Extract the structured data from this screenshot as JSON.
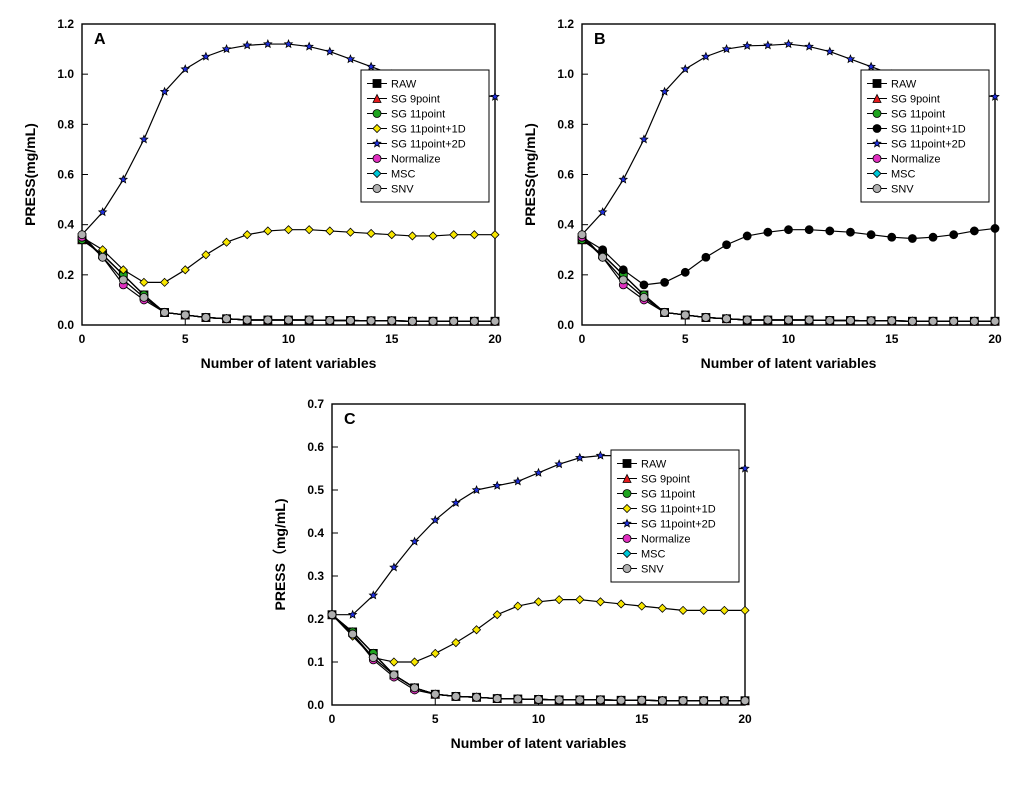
{
  "figure": {
    "background_color": "#ffffff",
    "panel_label_fontsize": 16,
    "panel_label_weight": "bold",
    "axis_label_fontsize": 14,
    "axis_label_weight": "bold",
    "tick_fontsize": 12,
    "legend_fontsize": 11,
    "line_width": 1.2,
    "marker_size": 4,
    "axis_color": "#000000",
    "text_color": "#000000"
  },
  "series_defs": [
    {
      "id": "RAW",
      "label": "RAW",
      "color": "#000000",
      "marker": "square"
    },
    {
      "id": "SG9",
      "label": "SG 9point",
      "color": "#e41a1c",
      "marker": "triangle"
    },
    {
      "id": "SG11",
      "label": "SG 11point",
      "color": "#1fa51f",
      "marker": "circle"
    },
    {
      "id": "SG11_1D",
      "label": "SG 11point+1D",
      "color": "#f7e600",
      "marker": "diamond"
    },
    {
      "id": "SG11_2D",
      "label": "SG 11point+2D",
      "color": "#2030e0",
      "marker": "star"
    },
    {
      "id": "Normalize",
      "label": "Normalize",
      "color": "#e030c0",
      "marker": "circle"
    },
    {
      "id": "MSC",
      "label": "MSC",
      "color": "#00c8d8",
      "marker": "diamond"
    },
    {
      "id": "SNV",
      "label": "SNV",
      "color": "#b0b0b0",
      "marker": "circle"
    }
  ],
  "panels": {
    "A": {
      "title": "A",
      "xlabel": "Number of latent variables",
      "ylabel": "PRESS(mg/mL)",
      "xlim": [
        0,
        20
      ],
      "xtick_step": 5,
      "ylim": [
        0,
        1.2
      ],
      "ytick_step": 0.2,
      "x": [
        0,
        1,
        2,
        3,
        4,
        5,
        6,
        7,
        8,
        9,
        10,
        11,
        12,
        13,
        14,
        15,
        16,
        17,
        18,
        19,
        20
      ],
      "series_overrides": {
        "SG11_1D": {
          "color": "#f7e600"
        }
      },
      "data": {
        "RAW": [
          0.34,
          0.28,
          0.2,
          0.12,
          0.05,
          0.04,
          0.03,
          0.025,
          0.02,
          0.02,
          0.02,
          0.02,
          0.018,
          0.018,
          0.017,
          0.017,
          0.015,
          0.015,
          0.015,
          0.015,
          0.015
        ],
        "SG9": [
          0.34,
          0.28,
          0.2,
          0.12,
          0.05,
          0.04,
          0.03,
          0.025,
          0.02,
          0.02,
          0.02,
          0.02,
          0.018,
          0.018,
          0.017,
          0.017,
          0.015,
          0.015,
          0.015,
          0.015,
          0.015
        ],
        "SG11": [
          0.34,
          0.28,
          0.2,
          0.12,
          0.05,
          0.04,
          0.03,
          0.025,
          0.02,
          0.02,
          0.02,
          0.02,
          0.018,
          0.018,
          0.017,
          0.017,
          0.015,
          0.015,
          0.015,
          0.015,
          0.015
        ],
        "SG11_1D": [
          0.35,
          0.3,
          0.22,
          0.17,
          0.17,
          0.22,
          0.28,
          0.33,
          0.36,
          0.375,
          0.38,
          0.38,
          0.375,
          0.37,
          0.365,
          0.36,
          0.355,
          0.355,
          0.36,
          0.36,
          0.36
        ],
        "SG11_2D": [
          0.36,
          0.45,
          0.58,
          0.74,
          0.93,
          1.02,
          1.07,
          1.1,
          1.115,
          1.12,
          1.12,
          1.11,
          1.09,
          1.06,
          1.03,
          1.0,
          0.97,
          0.95,
          0.93,
          0.92,
          0.91
        ],
        "Normalize": [
          0.35,
          0.27,
          0.16,
          0.1,
          0.05,
          0.04,
          0.03,
          0.025,
          0.02,
          0.02,
          0.02,
          0.02,
          0.018,
          0.018,
          0.017,
          0.017,
          0.015,
          0.015,
          0.015,
          0.015,
          0.015
        ],
        "MSC": [
          0.36,
          0.27,
          0.18,
          0.11,
          0.05,
          0.04,
          0.03,
          0.025,
          0.02,
          0.02,
          0.02,
          0.02,
          0.018,
          0.018,
          0.017,
          0.017,
          0.015,
          0.015,
          0.015,
          0.015,
          0.015
        ],
        "SNV": [
          0.36,
          0.27,
          0.18,
          0.11,
          0.05,
          0.04,
          0.03,
          0.025,
          0.02,
          0.02,
          0.02,
          0.02,
          0.018,
          0.018,
          0.017,
          0.017,
          0.015,
          0.015,
          0.015,
          0.015,
          0.015
        ]
      }
    },
    "B": {
      "title": "B",
      "xlabel": "Number of latent variables",
      "ylabel": "PRESS(mg/mL)",
      "xlim": [
        0,
        20
      ],
      "xtick_step": 5,
      "ylim": [
        0,
        1.2
      ],
      "ytick_step": 0.2,
      "x": [
        0,
        1,
        2,
        3,
        4,
        5,
        6,
        7,
        8,
        9,
        10,
        11,
        12,
        13,
        14,
        15,
        16,
        17,
        18,
        19,
        20
      ],
      "series_overrides": {
        "SG11_1D": {
          "color": "#000000",
          "marker": "circle"
        }
      },
      "data": {
        "RAW": [
          0.34,
          0.28,
          0.2,
          0.12,
          0.05,
          0.04,
          0.03,
          0.025,
          0.02,
          0.02,
          0.02,
          0.02,
          0.018,
          0.018,
          0.017,
          0.017,
          0.015,
          0.015,
          0.015,
          0.015,
          0.015
        ],
        "SG9": [
          0.34,
          0.28,
          0.2,
          0.12,
          0.05,
          0.04,
          0.03,
          0.025,
          0.02,
          0.02,
          0.02,
          0.02,
          0.018,
          0.018,
          0.017,
          0.017,
          0.015,
          0.015,
          0.015,
          0.015,
          0.015
        ],
        "SG11": [
          0.34,
          0.28,
          0.2,
          0.12,
          0.05,
          0.04,
          0.03,
          0.025,
          0.02,
          0.02,
          0.02,
          0.02,
          0.018,
          0.018,
          0.017,
          0.017,
          0.015,
          0.015,
          0.015,
          0.015,
          0.015
        ],
        "SG11_1D": [
          0.35,
          0.3,
          0.22,
          0.16,
          0.17,
          0.21,
          0.27,
          0.32,
          0.355,
          0.37,
          0.38,
          0.38,
          0.375,
          0.37,
          0.36,
          0.35,
          0.345,
          0.35,
          0.36,
          0.375,
          0.385
        ],
        "SG11_2D": [
          0.36,
          0.45,
          0.58,
          0.74,
          0.93,
          1.02,
          1.07,
          1.1,
          1.113,
          1.115,
          1.12,
          1.11,
          1.09,
          1.06,
          1.03,
          1.0,
          0.97,
          0.95,
          0.93,
          0.92,
          0.91
        ],
        "Normalize": [
          0.35,
          0.27,
          0.16,
          0.1,
          0.05,
          0.04,
          0.03,
          0.025,
          0.02,
          0.02,
          0.02,
          0.02,
          0.018,
          0.018,
          0.017,
          0.017,
          0.015,
          0.015,
          0.015,
          0.015,
          0.015
        ],
        "MSC": [
          0.36,
          0.27,
          0.18,
          0.11,
          0.05,
          0.04,
          0.03,
          0.025,
          0.02,
          0.02,
          0.02,
          0.02,
          0.018,
          0.018,
          0.017,
          0.017,
          0.015,
          0.015,
          0.015,
          0.015,
          0.015
        ],
        "SNV": [
          0.36,
          0.27,
          0.18,
          0.11,
          0.05,
          0.04,
          0.03,
          0.025,
          0.02,
          0.02,
          0.02,
          0.02,
          0.018,
          0.018,
          0.017,
          0.017,
          0.015,
          0.015,
          0.015,
          0.015,
          0.015
        ]
      }
    },
    "C": {
      "title": "C",
      "xlabel": "Number of latent variables",
      "ylabel": "PRESS（mg/mL)",
      "xlim": [
        0,
        20
      ],
      "xtick_step": 5,
      "ylim": [
        0,
        0.7
      ],
      "ytick_step": 0.1,
      "x": [
        0,
        1,
        2,
        3,
        4,
        5,
        6,
        7,
        8,
        9,
        10,
        11,
        12,
        13,
        14,
        15,
        16,
        17,
        18,
        19,
        20
      ],
      "series_overrides": {
        "SG11_1D": {
          "color": "#f7e600"
        },
        "SG11": {
          "label": "SG  11point"
        }
      },
      "data": {
        "RAW": [
          0.21,
          0.17,
          0.12,
          0.07,
          0.04,
          0.025,
          0.02,
          0.018,
          0.015,
          0.014,
          0.013,
          0.012,
          0.012,
          0.012,
          0.011,
          0.011,
          0.01,
          0.01,
          0.01,
          0.01,
          0.01
        ],
        "SG9": [
          0.21,
          0.17,
          0.12,
          0.07,
          0.04,
          0.025,
          0.02,
          0.018,
          0.015,
          0.014,
          0.013,
          0.012,
          0.012,
          0.012,
          0.011,
          0.011,
          0.01,
          0.01,
          0.01,
          0.01,
          0.01
        ],
        "SG11": [
          0.21,
          0.17,
          0.12,
          0.07,
          0.04,
          0.025,
          0.02,
          0.018,
          0.015,
          0.014,
          0.013,
          0.012,
          0.012,
          0.012,
          0.011,
          0.011,
          0.01,
          0.01,
          0.01,
          0.01,
          0.01
        ],
        "SG11_1D": [
          0.21,
          0.16,
          0.11,
          0.1,
          0.1,
          0.12,
          0.145,
          0.175,
          0.21,
          0.23,
          0.24,
          0.245,
          0.245,
          0.24,
          0.235,
          0.23,
          0.225,
          0.22,
          0.22,
          0.22,
          0.22
        ],
        "SG11_2D": [
          0.21,
          0.21,
          0.255,
          0.32,
          0.38,
          0.43,
          0.47,
          0.5,
          0.51,
          0.52,
          0.54,
          0.56,
          0.575,
          0.58,
          0.58,
          0.575,
          0.57,
          0.56,
          0.555,
          0.55,
          0.55
        ],
        "Normalize": [
          0.21,
          0.165,
          0.105,
          0.065,
          0.035,
          0.025,
          0.02,
          0.018,
          0.015,
          0.014,
          0.013,
          0.012,
          0.012,
          0.012,
          0.011,
          0.011,
          0.01,
          0.01,
          0.01,
          0.01,
          0.01
        ],
        "MSC": [
          0.21,
          0.165,
          0.11,
          0.07,
          0.04,
          0.025,
          0.02,
          0.018,
          0.015,
          0.014,
          0.013,
          0.012,
          0.012,
          0.012,
          0.011,
          0.011,
          0.01,
          0.01,
          0.01,
          0.01,
          0.01
        ],
        "SNV": [
          0.21,
          0.165,
          0.11,
          0.07,
          0.04,
          0.025,
          0.02,
          0.018,
          0.015,
          0.014,
          0.013,
          0.012,
          0.012,
          0.012,
          0.011,
          0.011,
          0.01,
          0.01,
          0.01,
          0.01,
          0.01
        ]
      }
    }
  }
}
